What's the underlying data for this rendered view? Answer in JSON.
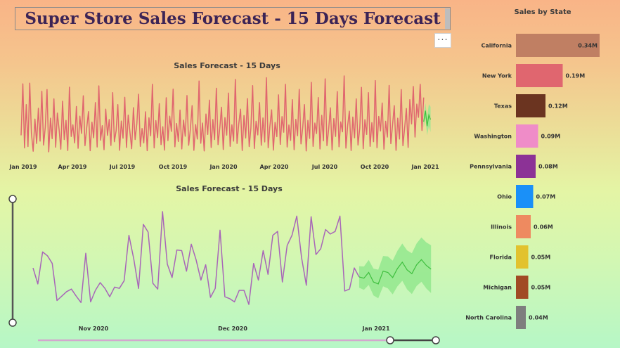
{
  "title": "Super Store Sales Forecast - 15 Days Forecast",
  "more_label": "···",
  "colors": {
    "history_top": "#e0666f",
    "history_bottom": "#a866b8",
    "forecast_line": "#3fbf3f",
    "forecast_band": "#96e890",
    "title_text": "#3c2456"
  },
  "chart_data": [
    {
      "type": "line",
      "title": "Sales Forecast - 15 Days",
      "x_tick_labels": [
        "Jan 2019",
        "Apr 2019",
        "Jul 2019",
        "Oct 2019",
        "Jan 2020",
        "Apr 2020",
        "Jul 2020",
        "Oct 2020",
        "Jan 2021"
      ],
      "series": [
        {
          "values": [
            980,
            3320,
            410,
            2380,
            470,
            3350,
            1080,
            260,
            1720,
            610,
            2210,
            720,
            2980,
            540,
            1350,
            3060,
            230,
            1760,
            830,
            2640,
            440,
            1990,
            1240,
            350,
            2530,
            790,
            1660,
            290,
            3170,
            930,
            1460,
            640,
            2290,
            390,
            1850,
            1070,
            2780,
            510,
            1340,
            2060,
            280,
            1580,
            870,
            2470,
            450,
            3230,
            760,
            1420,
            330,
            2170,
            980,
            1700,
            520,
            2920,
            690,
            1190,
            2380,
            300,
            1630,
            850,
            2710,
            430,
            1900,
            1110,
            370,
            2240,
            790,
            1520,
            2850,
            480,
            1290,
            640,
            2050,
            280,
            1780,
            960,
            3300,
            410,
            1650,
            880,
            2420,
            560,
            1370,
            310,
            2690,
            740,
            1850,
            1160,
            3080,
            460,
            1520,
            700,
            2130,
            360,
            1670,
            940,
            2790,
            530,
            1280,
            2330,
            300,
            1470,
            810,
            3450,
            620,
            1540,
            270,
            1950,
            1020,
            2580,
            430,
            1700,
            790,
            3120,
            560,
            1320,
            2260,
            340,
            1790,
            990,
            2900,
            480,
            1460,
            720,
            3520,
            610,
            1510,
            2170,
            290,
            1880,
            860,
            2650,
            470,
            1300,
            3240,
            380,
            1620,
            1000,
            2470,
            530,
            1770,
            680,
            3600,
            420,
            1390,
            2140,
            310,
            1570,
            920,
            2820,
            570,
            1830,
            1120,
            3300,
            450,
            1450,
            750,
            2600,
            330,
            1710,
            960,
            3070,
            590,
            1350,
            2380,
            270,
            1660,
            840,
            3390,
            480,
            1540,
            1060,
            2700,
            360,
            1890,
            730,
            3550,
            510,
            1250,
            2230,
            320,
            1740,
            930,
            2970,
            460,
            1590,
            1140,
            3680,
            400,
            1430,
            2080,
            290,
            1810,
            870,
            2640,
            540,
            1310,
            3160,
            370,
            1690,
            1020,
            2920,
            480,
            1560,
            690,
            3470,
            420,
            1840,
            1180,
            2450,
            350,
            1620,
            900,
            3250,
            600,
            1470,
            2330,
            300,
            1760,
            810,
            3060,
            510,
            1340,
            2200,
            430,
            2600,
            1500,
            3200,
            900,
            2400,
            1800,
            3300,
            1200,
            2700
          ]
        },
        {
          "values": [
            1600,
            2100,
            1400,
            1900,
            1700
          ]
        }
      ]
    },
    {
      "type": "line",
      "title": "Sales Forecast - 15 Days",
      "x_tick_labels": [
        "Nov 2020",
        "Dec 2020",
        "Jan 2021"
      ],
      "series": [
        {
          "values": [
            1450,
            1200,
            1700,
            1640,
            1520,
            940,
            1010,
            1080,
            1120,
            1010,
            910,
            1680,
            920,
            1100,
            1220,
            1130,
            1000,
            1150,
            1130,
            1250,
            1960,
            1590,
            1130,
            2130,
            2010,
            1210,
            1120,
            2330,
            1510,
            1300,
            1730,
            1720,
            1400,
            1820,
            1580,
            1260,
            1500,
            990,
            1130,
            2040,
            1000,
            970,
            920,
            1100,
            1100,
            880,
            1520,
            1260,
            1720,
            1350,
            1960,
            2020,
            1230,
            1800,
            1960,
            2260,
            1610,
            1180,
            2250,
            1660,
            1750,
            2050,
            1980,
            2020,
            2260,
            1090,
            1120,
            1450,
            1310
          ]
        },
        {
          "values": [
            1310,
            1290,
            1380,
            1230,
            1200,
            1400,
            1380,
            1300,
            1440,
            1540,
            1420,
            1360,
            1500,
            1580,
            1490,
            1430
          ]
        }
      ]
    },
    {
      "type": "bar",
      "title": "Sales by State",
      "categories": [
        "California",
        "New York",
        "Texas",
        "Washington",
        "Pennsylvania",
        "Ohio",
        "Illinois",
        "Florida",
        "Michigan",
        "North Carolina"
      ],
      "values": [
        0.34,
        0.19,
        0.12,
        0.09,
        0.08,
        0.07,
        0.06,
        0.05,
        0.05,
        0.04
      ],
      "value_labels": [
        "0.34M",
        "0.19M",
        "0.12M",
        "0.09M",
        "0.08M",
        "0.07M",
        "0.06M",
        "0.05M",
        "0.05M",
        "0.04M"
      ],
      "colors": [
        "#c07f63",
        "#e0666f",
        "#6b3420",
        "#ef8cc8",
        "#8c3296",
        "#1a90f8",
        "#ee8a60",
        "#e2c22e",
        "#a14a24",
        "#7e7e7e"
      ]
    }
  ]
}
